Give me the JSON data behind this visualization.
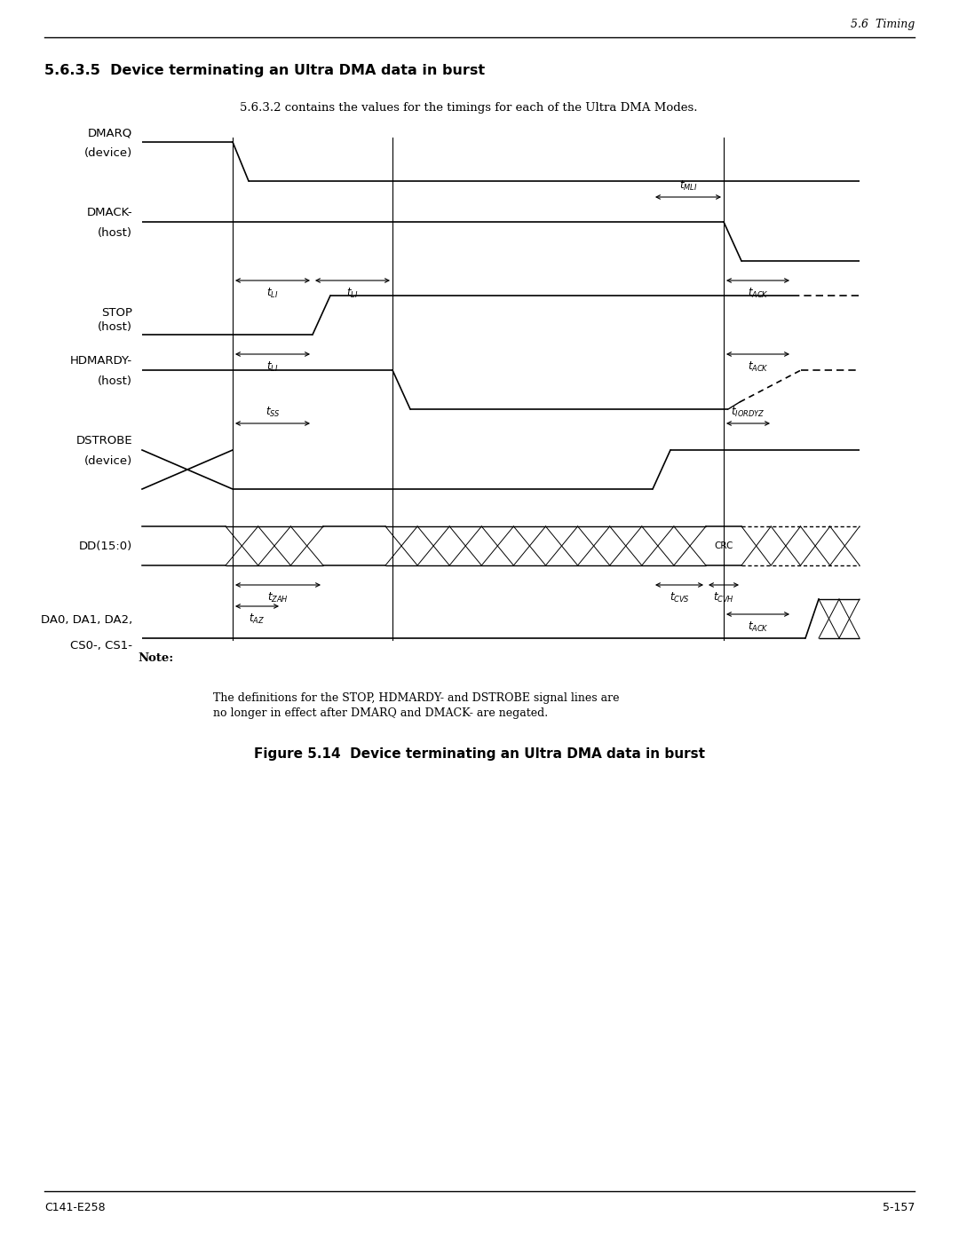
{
  "page_title": "5.6  Timing",
  "section_title": "5.6.3.5  Device terminating an Ultra DMA data in burst",
  "subtitle": "5.6.3.2 contains the values for the timings for each of the Ultra DMA Modes.",
  "note_label": "Note:",
  "note_text": "The definitions for the STOP, HDMARDY- and DSTROBE signal lines are\nno longer in effect after DMARQ and DMACK- are negated.",
  "figure_caption": "Figure 5.14  Device terminating an Ultra DMA data in burst",
  "footer_left": "C141-E258",
  "footer_right": "5-157",
  "bg_color": "#ffffff",
  "line_color": "#000000",
  "page_width": 10.8,
  "page_height": 13.97,
  "dpi": 100
}
